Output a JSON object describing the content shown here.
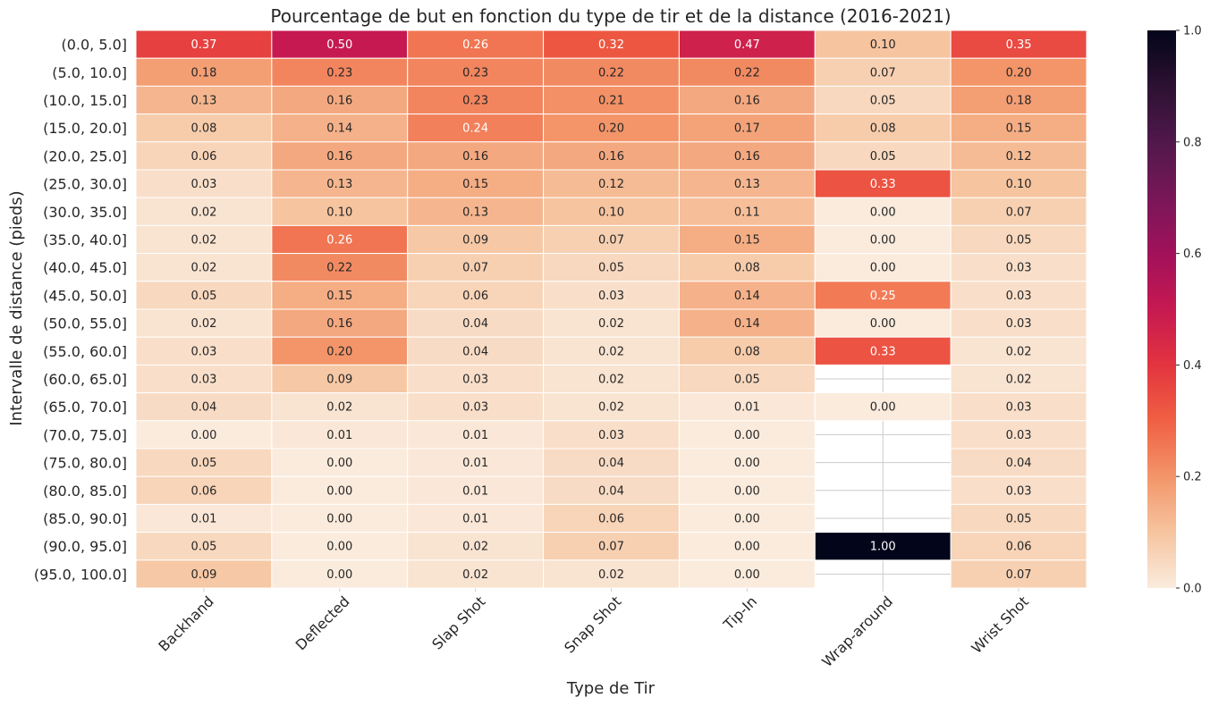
{
  "chart_data": {
    "type": "heatmap",
    "title": "Pourcentage de but en fonction du type de tir et de la distance (2016-2021)",
    "xlabel": "Type de Tir",
    "ylabel": "Intervalle de distance (pieds)",
    "x_categories": [
      "Backhand",
      "Deflected",
      "Slap Shot",
      "Snap Shot",
      "Tip-In",
      "Wrap-around",
      "Wrist Shot"
    ],
    "y_categories": [
      "(0.0, 5.0]",
      "(5.0, 10.0]",
      "(10.0, 15.0]",
      "(15.0, 20.0]",
      "(20.0, 25.0]",
      "(25.0, 30.0]",
      "(30.0, 35.0]",
      "(35.0, 40.0]",
      "(40.0, 45.0]",
      "(45.0, 50.0]",
      "(50.0, 55.0]",
      "(55.0, 60.0]",
      "(60.0, 65.0]",
      "(65.0, 70.0]",
      "(70.0, 75.0]",
      "(75.0, 80.0]",
      "(80.0, 85.0]",
      "(85.0, 90.0]",
      "(90.0, 95.0]",
      "(95.0, 100.0]"
    ],
    "values": [
      [
        0.37,
        0.5,
        0.26,
        0.32,
        0.47,
        0.1,
        0.35
      ],
      [
        0.18,
        0.23,
        0.23,
        0.22,
        0.22,
        0.07,
        0.2
      ],
      [
        0.13,
        0.16,
        0.23,
        0.21,
        0.16,
        0.05,
        0.18
      ],
      [
        0.08,
        0.14,
        0.24,
        0.2,
        0.17,
        0.08,
        0.15
      ],
      [
        0.06,
        0.16,
        0.16,
        0.16,
        0.16,
        0.05,
        0.12
      ],
      [
        0.03,
        0.13,
        0.15,
        0.12,
        0.13,
        0.33,
        0.1
      ],
      [
        0.02,
        0.1,
        0.13,
        0.1,
        0.11,
        0.0,
        0.07
      ],
      [
        0.02,
        0.26,
        0.09,
        0.07,
        0.15,
        0.0,
        0.05
      ],
      [
        0.02,
        0.22,
        0.07,
        0.05,
        0.08,
        0.0,
        0.03
      ],
      [
        0.05,
        0.15,
        0.06,
        0.03,
        0.14,
        0.25,
        0.03
      ],
      [
        0.02,
        0.16,
        0.04,
        0.02,
        0.14,
        0.0,
        0.03
      ],
      [
        0.03,
        0.2,
        0.04,
        0.02,
        0.08,
        0.33,
        0.02
      ],
      [
        0.03,
        0.09,
        0.03,
        0.02,
        0.05,
        null,
        0.02
      ],
      [
        0.04,
        0.02,
        0.03,
        0.02,
        0.01,
        0.0,
        0.03
      ],
      [
        0.0,
        0.01,
        0.01,
        0.03,
        0.0,
        null,
        0.03
      ],
      [
        0.05,
        0.0,
        0.01,
        0.04,
        0.0,
        null,
        0.04
      ],
      [
        0.06,
        0.0,
        0.01,
        0.04,
        0.0,
        null,
        0.03
      ],
      [
        0.01,
        0.0,
        0.01,
        0.06,
        0.0,
        null,
        0.05
      ],
      [
        0.05,
        0.0,
        0.02,
        0.07,
        0.0,
        1.0,
        0.06
      ],
      [
        0.09,
        0.0,
        0.02,
        0.02,
        0.0,
        null,
        0.07
      ]
    ],
    "value_format": "2 decimals",
    "colorbar": {
      "colormap": "rocket_r",
      "range": [
        0.0,
        1.0
      ],
      "ticks": [
        "0.0",
        "0.2",
        "0.4",
        "0.6",
        "0.8",
        "1.0"
      ]
    },
    "missing_cells": "blank (white) with grid lines",
    "grid": true
  }
}
